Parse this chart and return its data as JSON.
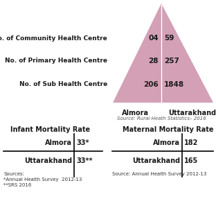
{
  "triangle_color": "#d4a0b5",
  "labels_left": [
    "No. of Community Health Centre",
    "No. of Primary Health Centre",
    "No. of Sub Health Centre"
  ],
  "almora_values": [
    "04",
    "28",
    "206"
  ],
  "uttarakhand_values": [
    "59",
    "257",
    "1848"
  ],
  "col_label_almora": "Almora",
  "col_label_uttarakhand": "Uttarakhand",
  "source_triangle": "Source: Rural Heath Statistics– 2016",
  "imr_title": "Infant Mortality Rate",
  "mmr_title": "Maternal Mortality Rate",
  "imr_rows": [
    [
      "Almora",
      "33*"
    ],
    [
      "Uttarakhand",
      "33**"
    ]
  ],
  "mmr_rows": [
    [
      "Almora",
      "182"
    ],
    [
      "Uttarakhand",
      "165"
    ]
  ],
  "sources_imr": "Sources:\n*Annual Health Survey  2012-13\n**SRS 2016",
  "source_mmr": "Source: Annual Health Survey 2012-13",
  "bg_color": "#ffffff",
  "text_color": "#1a1a1a"
}
